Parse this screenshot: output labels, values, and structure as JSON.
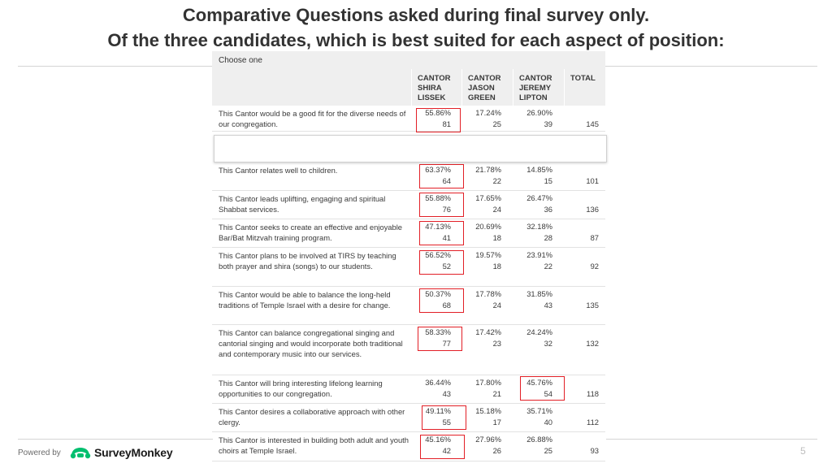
{
  "slide": {
    "title_line1": "Comparative Questions asked during final survey only.",
    "title_line2": "Of the three candidates, which is best suited for each aspect of position:",
    "page_number": "5"
  },
  "table": {
    "choose_label": "Choose one",
    "columns": [
      {
        "lines": [
          "CANTOR",
          "SHIRA",
          "LISSEK"
        ]
      },
      {
        "lines": [
          "CANTOR",
          "JASON",
          "GREEN"
        ]
      },
      {
        "lines": [
          "CANTOR",
          "JEREMY",
          "LIPTON"
        ]
      },
      {
        "lines": [
          "TOTAL"
        ]
      }
    ],
    "rows": [
      {
        "question": "This Cantor would be a good fit for the diverse needs of our congregation.",
        "cells": [
          {
            "pct": "55.86%",
            "n": "81"
          },
          {
            "pct": "17.24%",
            "n": "25"
          },
          {
            "pct": "26.90%",
            "n": "39"
          }
        ],
        "total": "145",
        "selected": 0
      },
      {
        "question": "This Cantor relates well to children.",
        "cells": [
          {
            "pct": "63.37%",
            "n": "64"
          },
          {
            "pct": "21.78%",
            "n": "22"
          },
          {
            "pct": "14.85%",
            "n": "15"
          }
        ],
        "total": "101",
        "selected": 0
      },
      {
        "question": "This Cantor leads uplifting, engaging and spiritual Shabbat services.",
        "cells": [
          {
            "pct": "55.88%",
            "n": "76"
          },
          {
            "pct": "17.65%",
            "n": "24"
          },
          {
            "pct": "26.47%",
            "n": "36"
          }
        ],
        "total": "136",
        "selected": 0
      },
      {
        "question": "This Cantor seeks to create an effective and enjoyable Bar/Bat Mitzvah training program.",
        "cells": [
          {
            "pct": "47.13%",
            "n": "41"
          },
          {
            "pct": "20.69%",
            "n": "18"
          },
          {
            "pct": "32.18%",
            "n": "28"
          }
        ],
        "total": "87",
        "selected": 0
      },
      {
        "question": "This Cantor plans to be involved at TIRS by teaching both prayer and shira (songs) to our students.",
        "cells": [
          {
            "pct": "56.52%",
            "n": "52"
          },
          {
            "pct": "19.57%",
            "n": "18"
          },
          {
            "pct": "23.91%",
            "n": "22"
          }
        ],
        "total": "92",
        "selected": 0
      },
      {
        "question": "This Cantor would be able to balance the long-held traditions of Temple Israel with a desire for change.",
        "cells": [
          {
            "pct": "50.37%",
            "n": "68"
          },
          {
            "pct": "17.78%",
            "n": "24"
          },
          {
            "pct": "31.85%",
            "n": "43"
          }
        ],
        "total": "135",
        "selected": 0
      },
      {
        "question": "This Cantor can balance congregational singing and cantorial singing and would incorporate both traditional and contemporary music into our services.",
        "cells": [
          {
            "pct": "58.33%",
            "n": "77"
          },
          {
            "pct": "17.42%",
            "n": "23"
          },
          {
            "pct": "24.24%",
            "n": "32"
          }
        ],
        "total": "132",
        "selected": 0
      },
      {
        "question": "This Cantor will bring interesting lifelong learning opportunities to our congregation.",
        "cells": [
          {
            "pct": "36.44%",
            "n": "43"
          },
          {
            "pct": "17.80%",
            "n": "21"
          },
          {
            "pct": "45.76%",
            "n": "54"
          }
        ],
        "total": "118",
        "selected": 2
      },
      {
        "question": "This Cantor desires a collaborative approach with other clergy.",
        "cells": [
          {
            "pct": "49.11%",
            "n": "55"
          },
          {
            "pct": "15.18%",
            "n": "17"
          },
          {
            "pct": "35.71%",
            "n": "40"
          }
        ],
        "total": "112",
        "selected": 0
      },
      {
        "question": "This Cantor is interested in building both adult and youth choirs at Temple Israel.",
        "cells": [
          {
            "pct": "45.16%",
            "n": "42"
          },
          {
            "pct": "27.96%",
            "n": "26"
          },
          {
            "pct": "26.88%",
            "n": "25"
          }
        ],
        "total": "93",
        "selected": 0
      }
    ]
  },
  "footer": {
    "powered_by": "Powered by",
    "brand": "SurveyMonkey",
    "brand_icon": "monkey-logo-icon",
    "brand_color": "#00bf6f"
  },
  "colors": {
    "highlight": "#e21f26",
    "header_bg": "#efefef"
  }
}
